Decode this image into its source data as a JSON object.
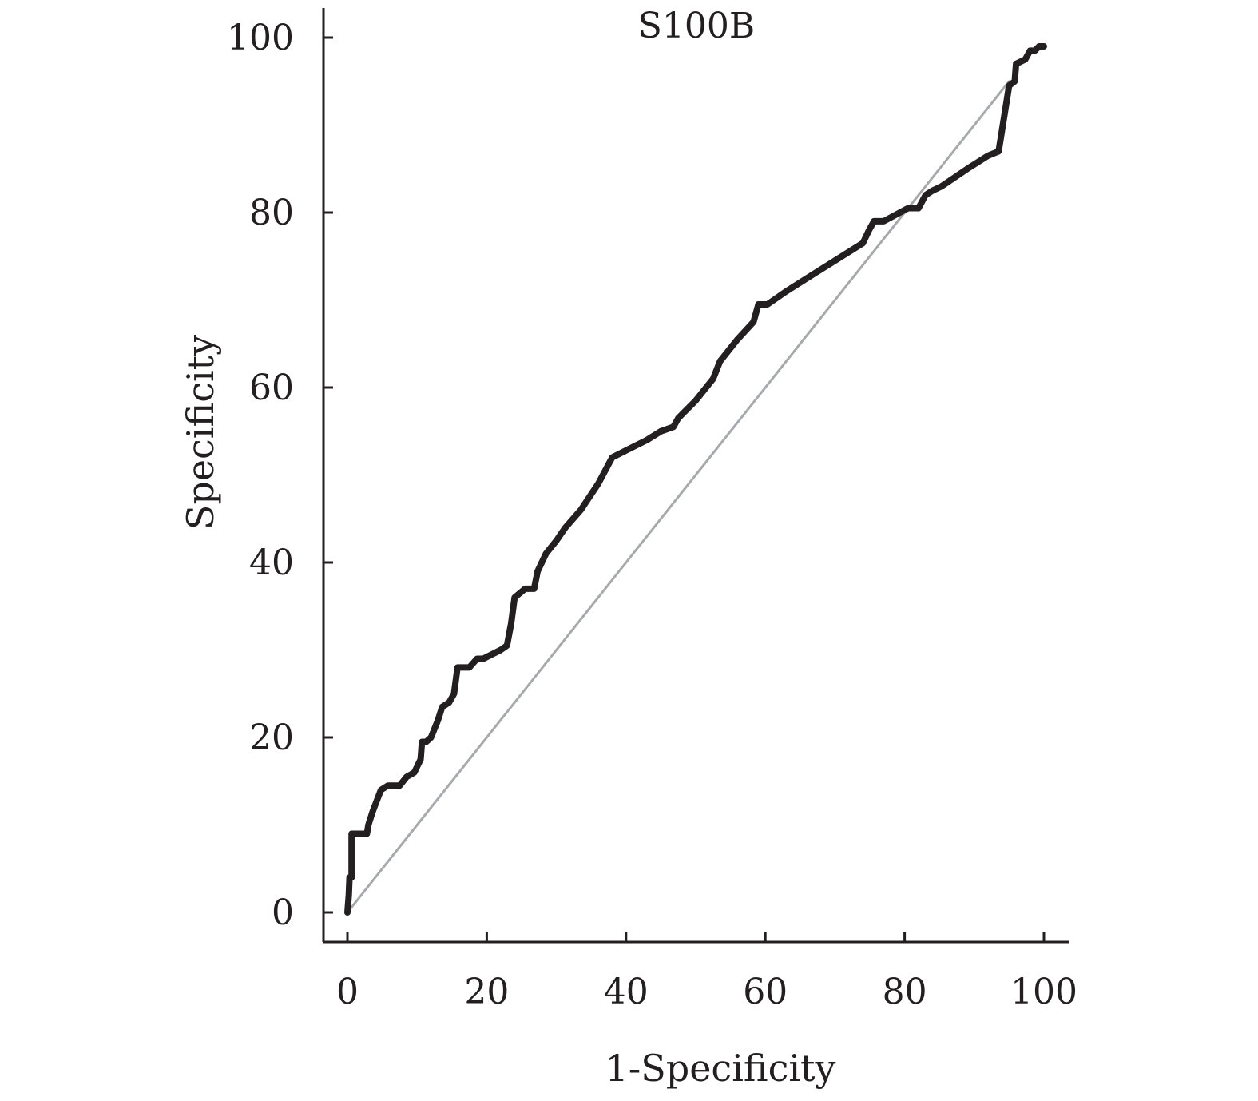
{
  "chart_data": {
    "type": "line",
    "title": "S100B",
    "xlabel": "1-Specificity",
    "ylabel": "Specificity",
    "xlim": [
      0,
      100
    ],
    "ylim": [
      0,
      100
    ],
    "xticks": [
      0,
      20,
      40,
      60,
      80,
      100
    ],
    "yticks": [
      0,
      20,
      40,
      60,
      80,
      100
    ],
    "grid": false,
    "legend": "none",
    "colors": {
      "roc_curve": "#231f20",
      "reference_line": "#a7a9ac",
      "axis": "#231f20"
    },
    "series": [
      {
        "role": "roc_curve",
        "points": [
          [
            0.0,
            0.0
          ],
          [
            0.2,
            2.0
          ],
          [
            0.3,
            4.0
          ],
          [
            0.6,
            4.0
          ],
          [
            0.6,
            9.0
          ],
          [
            1.3,
            9.0
          ],
          [
            2.8,
            9.0
          ],
          [
            3.0,
            10.0
          ],
          [
            3.6,
            11.5
          ],
          [
            4.8,
            14.0
          ],
          [
            5.8,
            14.5
          ],
          [
            7.5,
            14.5
          ],
          [
            8.5,
            15.5
          ],
          [
            9.6,
            16.0
          ],
          [
            10.5,
            17.5
          ],
          [
            10.7,
            19.5
          ],
          [
            11.3,
            19.5
          ],
          [
            12.0,
            20.0
          ],
          [
            13.0,
            22.0
          ],
          [
            13.6,
            23.5
          ],
          [
            14.6,
            24.0
          ],
          [
            15.3,
            25.0
          ],
          [
            15.8,
            28.0
          ],
          [
            17.5,
            28.0
          ],
          [
            18.6,
            29.0
          ],
          [
            19.5,
            29.0
          ],
          [
            22.0,
            30.0
          ],
          [
            22.9,
            30.5
          ],
          [
            23.5,
            33.0
          ],
          [
            24.0,
            36.0
          ],
          [
            25.5,
            37.0
          ],
          [
            26.8,
            37.0
          ],
          [
            27.3,
            39.0
          ],
          [
            28.5,
            41.0
          ],
          [
            30.0,
            42.5
          ],
          [
            31.3,
            44.0
          ],
          [
            33.5,
            46.0
          ],
          [
            36.0,
            49.0
          ],
          [
            38.0,
            52.0
          ],
          [
            40.5,
            53.0
          ],
          [
            43.0,
            54.0
          ],
          [
            45.0,
            55.0
          ],
          [
            46.8,
            55.5
          ],
          [
            47.5,
            56.5
          ],
          [
            50.0,
            58.5
          ],
          [
            52.5,
            61.0
          ],
          [
            53.5,
            63.0
          ],
          [
            56.0,
            65.5
          ],
          [
            58.3,
            67.5
          ],
          [
            59.0,
            69.5
          ],
          [
            60.3,
            69.5
          ],
          [
            63.0,
            71.0
          ],
          [
            67.0,
            73.0
          ],
          [
            70.0,
            74.5
          ],
          [
            74.0,
            76.5
          ],
          [
            74.9,
            78.0
          ],
          [
            75.6,
            79.0
          ],
          [
            77.0,
            79.0
          ],
          [
            80.5,
            80.5
          ],
          [
            82.0,
            80.5
          ],
          [
            83.0,
            82.0
          ],
          [
            84.0,
            82.5
          ],
          [
            85.3,
            83.0
          ],
          [
            89.0,
            85.0
          ],
          [
            92.0,
            86.5
          ],
          [
            93.5,
            87.0
          ],
          [
            95.0,
            94.5
          ],
          [
            95.8,
            95.0
          ],
          [
            96.0,
            97.0
          ],
          [
            97.3,
            97.5
          ],
          [
            98.0,
            98.5
          ],
          [
            98.7,
            98.5
          ],
          [
            99.3,
            99.0
          ],
          [
            100.0,
            99.0
          ]
        ]
      },
      {
        "role": "reference_line",
        "points": [
          [
            0,
            0
          ],
          [
            95,
            95
          ]
        ]
      }
    ]
  }
}
